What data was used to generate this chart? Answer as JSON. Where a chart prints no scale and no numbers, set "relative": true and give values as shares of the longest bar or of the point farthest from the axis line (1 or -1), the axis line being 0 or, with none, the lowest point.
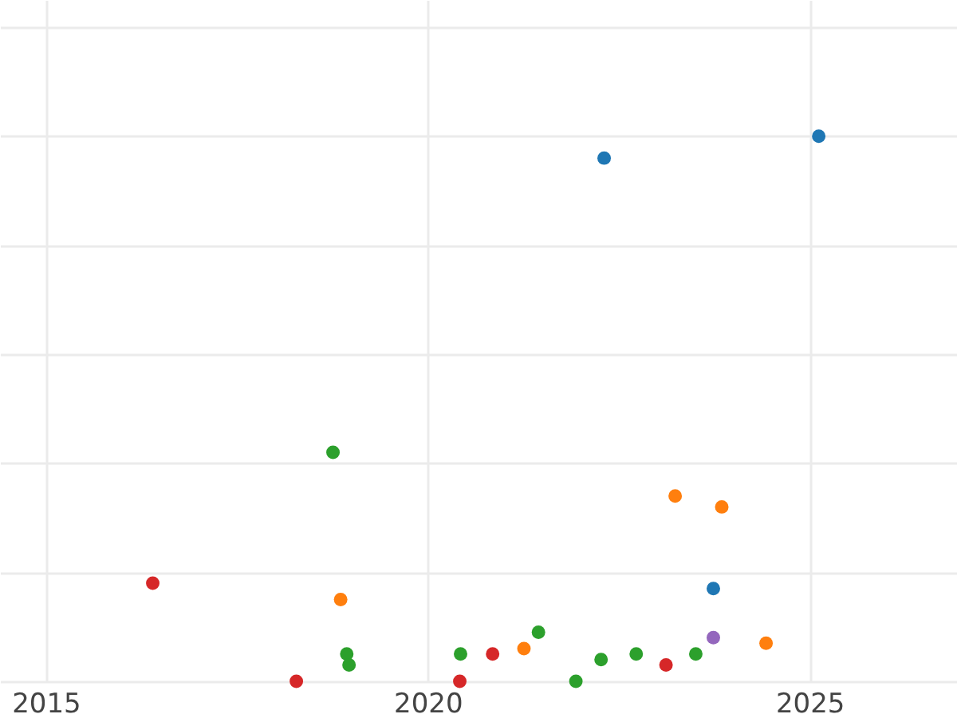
{
  "chart_data": {
    "type": "scatter",
    "relative": true,
    "marker": "circle",
    "grid": true,
    "xlim": [
      2014.4,
      2026.93
    ],
    "xticks": [
      2015,
      2020,
      2025
    ],
    "series": [
      {
        "color": "#1f77b4",
        "x": [
          2022.31,
          2023.74,
          2025.12
        ],
        "values": [
          0.96,
          0.17,
          1
        ]
      },
      {
        "color": "#ff7f0e",
        "x": [
          2018.86,
          2021.26,
          2023.24,
          2023.85,
          2024.43
        ],
        "values": [
          0.15,
          0.06,
          0.34,
          0.32,
          0.07
        ]
      },
      {
        "color": "#2ca02c",
        "x": [
          2018.76,
          2018.94,
          2018.97,
          2020.43,
          2021.45,
          2021.94,
          2022.27,
          2022.73,
          2023.51
        ],
        "values": [
          0.42,
          0.05,
          0.03,
          0.05,
          0.09,
          0,
          0.04,
          0.05,
          0.05
        ]
      },
      {
        "color": "#d62728",
        "x": [
          2016.4,
          2018.28,
          2020.42,
          2020.85,
          2023.12
        ],
        "values": [
          0.18,
          0,
          0,
          0.05,
          0.03
        ]
      },
      {
        "color": "#9467bd",
        "x": [
          2023.74
        ],
        "values": [
          0.08
        ]
      }
    ]
  }
}
